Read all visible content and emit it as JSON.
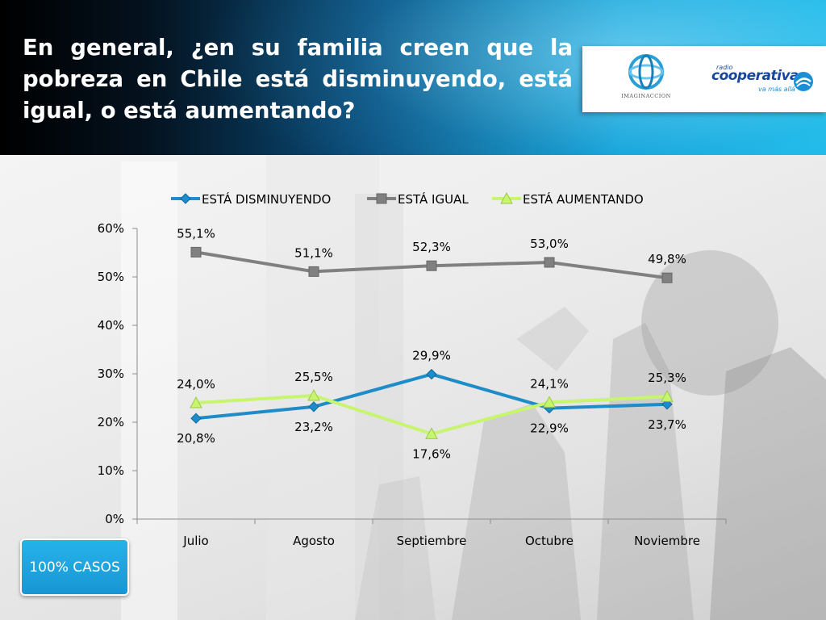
{
  "title": "En general, ¿en su familia creen que la pobreza en Chile está disminuyendo, está igual, o está aumentando?",
  "logos": {
    "left_caption": "IMAGINACCION",
    "right_small": "radio",
    "right_brand": "cooperativa",
    "right_tagline": "va más allá"
  },
  "badge": {
    "label": "100% CASOS"
  },
  "colors": {
    "header_dark": "#000000",
    "header_light": "#1ebce9",
    "disminuyendo": "#1e8cc8",
    "igual": "#808080",
    "aumentando": "#c8f56e",
    "badge": "#1ea5df"
  },
  "chart_data": {
    "type": "line",
    "categories": [
      "Julio",
      "Agosto",
      "Septiembre",
      "Octubre",
      "Noviembre"
    ],
    "ylim": [
      0,
      60
    ],
    "yticks": [
      0,
      10,
      20,
      30,
      40,
      50,
      60
    ],
    "ytick_labels": [
      "0%",
      "10%",
      "20%",
      "30%",
      "40%",
      "50%",
      "60%"
    ],
    "legend_position": "top",
    "grid": false,
    "series": [
      {
        "name": "ESTÁ DISMINUYENDO",
        "marker": "diamond",
        "color": "#1e8cc8",
        "values": [
          20.8,
          23.2,
          29.9,
          22.9,
          23.7
        ],
        "labels": [
          "20,8%",
          "23,2%",
          "29,9%",
          "22,9%",
          "23,7%"
        ]
      },
      {
        "name": "ESTÁ IGUAL",
        "marker": "square",
        "color": "#808080",
        "values": [
          55.1,
          51.1,
          52.3,
          53.0,
          49.8
        ],
        "labels": [
          "55,1%",
          "51,1%",
          "52,3%",
          "53,0%",
          "49,8%"
        ]
      },
      {
        "name": "ESTÁ AUMENTANDO",
        "marker": "triangle",
        "color": "#c8f56e",
        "values": [
          24.0,
          25.5,
          17.6,
          24.1,
          25.3
        ],
        "labels": [
          "24,0%",
          "25,5%",
          "17,6%",
          "24,1%",
          "25,3%"
        ]
      }
    ]
  }
}
